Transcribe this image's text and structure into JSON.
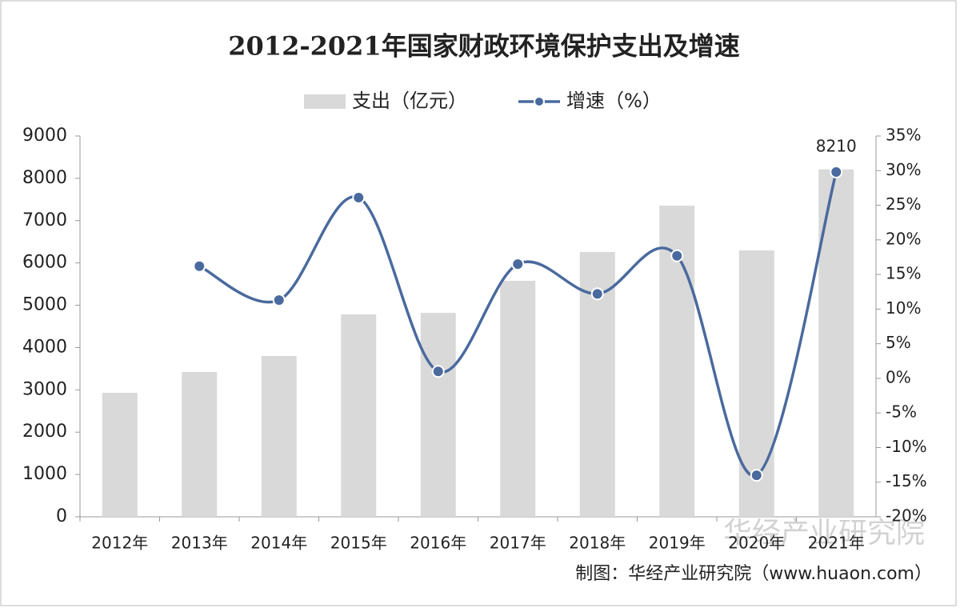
{
  "chart_data": {
    "type": "bar-line",
    "title": "2012-2021年国家财政环境保护支出及增速",
    "categories": [
      "2012年",
      "2013年",
      "2014年",
      "2015年",
      "2016年",
      "2017年",
      "2018年",
      "2019年",
      "2020年",
      "2021年"
    ],
    "series": [
      {
        "name": "支出（亿元）",
        "type": "bar",
        "color": "#d9d9d9",
        "values": [
          2930,
          3422,
          3800,
          4783,
          4820,
          5577,
          6257,
          7354,
          6295,
          8210
        ],
        "value_labels": [
          null,
          null,
          null,
          null,
          null,
          null,
          null,
          null,
          null,
          "8210"
        ]
      },
      {
        "name": "增速（%）",
        "type": "line",
        "axis": "y2",
        "color": "#4a6a9e",
        "smooth": true,
        "values": [
          null,
          16.2,
          11.3,
          26.1,
          1.0,
          16.5,
          12.2,
          17.7,
          -14.0,
          29.8
        ]
      }
    ],
    "ylim": [
      0,
      9000
    ],
    "yticks": [
      0,
      1000,
      2000,
      3000,
      4000,
      5000,
      6000,
      7000,
      8000,
      9000
    ],
    "y2lim": [
      -20,
      35
    ],
    "y2ticks": [
      {
        "value": -20,
        "label": "-20%"
      },
      {
        "value": -15,
        "label": "-15%"
      },
      {
        "value": -10,
        "label": "-10%"
      },
      {
        "value": -5,
        "label": "-5%"
      },
      {
        "value": 0,
        "label": "0%"
      },
      {
        "value": 5,
        "label": "5%"
      },
      {
        "value": 10,
        "label": "10%"
      },
      {
        "value": 15,
        "label": "15%"
      },
      {
        "value": 20,
        "label": "20%"
      },
      {
        "value": 25,
        "label": "25%"
      },
      {
        "value": 30,
        "label": "30%"
      },
      {
        "value": 35,
        "label": "35%"
      }
    ],
    "legend": "top",
    "grid": false,
    "watermark": "华经产业研究院",
    "source": "制图：华经产业研究院（www.huaon.com）"
  }
}
